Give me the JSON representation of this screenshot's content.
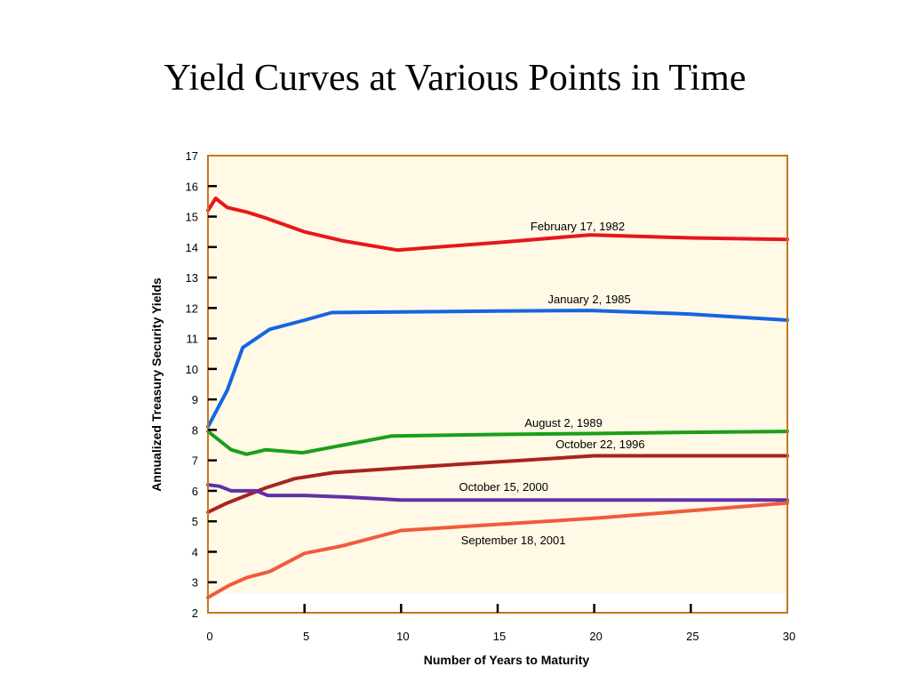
{
  "slide": {
    "title": "Yield Curves at Various Points in Time"
  },
  "colors": {
    "plot_border": "#c8761e",
    "plot_fill": "#fff9e6",
    "axis": "#000000"
  },
  "chart_data": {
    "type": "line",
    "title": "Yield Curves at Various Points in Time",
    "xlabel": "Number of Years to Maturity",
    "ylabel": "Annualized Treasury Security Yields",
    "xlim": [
      0,
      30
    ],
    "ylim": [
      2,
      17
    ],
    "x_ticks": [
      0,
      5,
      10,
      15,
      20,
      25,
      30
    ],
    "y_ticks": [
      2,
      3,
      4,
      5,
      6,
      7,
      8,
      9,
      10,
      11,
      12,
      13,
      14,
      15,
      16,
      17
    ],
    "grid": false,
    "series": [
      {
        "name": "February 17, 1982",
        "color": "#e8161b",
        "label_at": [
          16.7,
          14.55
        ],
        "points": [
          [
            0,
            15.2
          ],
          [
            0.4,
            15.6
          ],
          [
            1,
            15.3
          ],
          [
            2,
            15.15
          ],
          [
            3,
            14.95
          ],
          [
            5,
            14.5
          ],
          [
            7,
            14.2
          ],
          [
            9.8,
            13.9
          ],
          [
            15,
            14.15
          ],
          [
            19.8,
            14.4
          ],
          [
            25,
            14.3
          ],
          [
            30,
            14.25
          ]
        ]
      },
      {
        "name": "January 2, 1985",
        "color": "#1565e0",
        "label_at": [
          17.6,
          12.15
        ],
        "points": [
          [
            0,
            8.1
          ],
          [
            1,
            9.3
          ],
          [
            1.8,
            10.7
          ],
          [
            3.2,
            11.3
          ],
          [
            5,
            11.6
          ],
          [
            6.4,
            11.85
          ],
          [
            10,
            11.87
          ],
          [
            15,
            11.9
          ],
          [
            19.8,
            11.92
          ],
          [
            25,
            11.8
          ],
          [
            30,
            11.6
          ]
        ]
      },
      {
        "name": "August 2, 1989",
        "color": "#1a9e1a",
        "label_at": [
          16.4,
          8.1
        ],
        "points": [
          [
            0,
            7.95
          ],
          [
            1.2,
            7.35
          ],
          [
            2,
            7.2
          ],
          [
            3,
            7.35
          ],
          [
            4.9,
            7.25
          ],
          [
            7,
            7.5
          ],
          [
            9.5,
            7.8
          ],
          [
            15,
            7.85
          ],
          [
            20,
            7.88
          ],
          [
            25,
            7.92
          ],
          [
            30,
            7.95
          ]
        ]
      },
      {
        "name": "October 22, 1996",
        "color": "#a8241e",
        "label_at": [
          18,
          7.4
        ],
        "points": [
          [
            0,
            5.3
          ],
          [
            1,
            5.6
          ],
          [
            3,
            6.1
          ],
          [
            4.5,
            6.4
          ],
          [
            6.5,
            6.6
          ],
          [
            10,
            6.75
          ],
          [
            15,
            6.95
          ],
          [
            20,
            7.15
          ],
          [
            25,
            7.15
          ],
          [
            30,
            7.15
          ]
        ]
      },
      {
        "name": "October 15, 2000",
        "color": "#6030a8",
        "label_at": [
          13,
          6.0
        ],
        "points": [
          [
            0,
            6.2
          ],
          [
            0.6,
            6.15
          ],
          [
            1.2,
            6.0
          ],
          [
            2.5,
            6.0
          ],
          [
            3.1,
            5.85
          ],
          [
            5,
            5.85
          ],
          [
            7,
            5.8
          ],
          [
            10,
            5.7
          ],
          [
            15,
            5.7
          ],
          [
            20,
            5.7
          ],
          [
            25,
            5.7
          ],
          [
            30,
            5.7
          ]
        ]
      },
      {
        "name": "September 18, 2001",
        "color": "#f25a3c",
        "label_at": [
          13.1,
          4.25
        ],
        "points": [
          [
            0,
            2.5
          ],
          [
            1.1,
            2.9
          ],
          [
            2,
            3.15
          ],
          [
            3.2,
            3.35
          ],
          [
            5,
            3.95
          ],
          [
            7,
            4.2
          ],
          [
            10,
            4.7
          ],
          [
            15,
            4.9
          ],
          [
            20,
            5.1
          ],
          [
            25,
            5.35
          ],
          [
            30,
            5.6
          ]
        ]
      }
    ]
  }
}
